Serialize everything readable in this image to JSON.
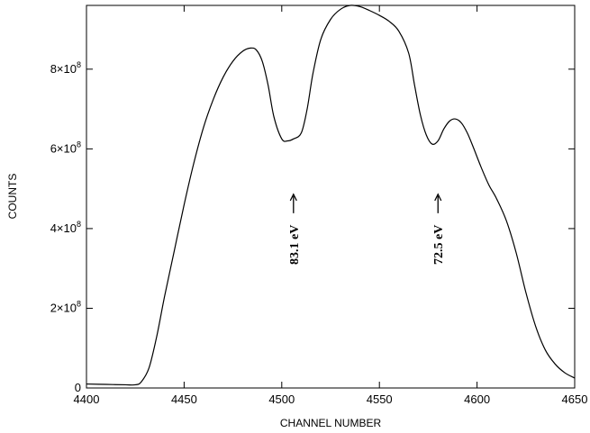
{
  "chart_data": {
    "type": "line",
    "title": "",
    "xlabel": "CHANNEL NUMBER",
    "ylabel": "COUNTS",
    "xlim": [
      4400,
      4650
    ],
    "ylim": [
      0,
      960000000
    ],
    "x_ticks": [
      4400,
      4450,
      4500,
      4550,
      4600,
      4650
    ],
    "x_tick_labels": [
      "4400",
      "4450",
      "4500",
      "4550",
      "4600",
      "4650"
    ],
    "y_ticks": [
      0,
      200000000,
      400000000,
      600000000,
      800000000
    ],
    "y_tick_labels": [
      {
        "base": "0",
        "exp": ""
      },
      {
        "base": "2×10",
        "exp": "8"
      },
      {
        "base": "4×10",
        "exp": "8"
      },
      {
        "base": "6×10",
        "exp": "8"
      },
      {
        "base": "8×10",
        "exp": "8"
      }
    ],
    "grid": false,
    "legend": "none",
    "line_color": "#000000",
    "series": [
      {
        "x": [
          4400,
          4410,
          4420,
          4425,
          4428,
          4432,
          4436,
          4440,
          4445,
          4450,
          4455,
          4460,
          4465,
          4470,
          4475,
          4480,
          4484,
          4487,
          4490,
          4493,
          4496,
          4500,
          4503,
          4506,
          4510,
          4513,
          4516,
          4520,
          4525,
          4530,
          4535,
          4540,
          4545,
          4550,
          4555,
          4560,
          4565,
          4568,
          4571,
          4574,
          4577,
          4580,
          4583,
          4586,
          4589,
          4592,
          4595,
          4598,
          4602,
          4606,
          4610,
          4615,
          4620,
          4625,
          4630,
          4635,
          4640,
          4645,
          4650
        ],
        "y": [
          10000000,
          9000000,
          8000000,
          8000000,
          15000000,
          50000000,
          130000000,
          230000000,
          345000000,
          460000000,
          565000000,
          655000000,
          725000000,
          780000000,
          820000000,
          845000000,
          853000000,
          848000000,
          820000000,
          760000000,
          680000000,
          625000000,
          620000000,
          625000000,
          640000000,
          700000000,
          790000000,
          875000000,
          925000000,
          950000000,
          960000000,
          957000000,
          947000000,
          935000000,
          920000000,
          895000000,
          840000000,
          760000000,
          685000000,
          635000000,
          612000000,
          620000000,
          650000000,
          670000000,
          675000000,
          665000000,
          640000000,
          605000000,
          555000000,
          510000000,
          475000000,
          420000000,
          340000000,
          240000000,
          155000000,
          95000000,
          60000000,
          38000000,
          25000000
        ]
      }
    ],
    "annotations": [
      {
        "text": "83.1 eV",
        "x": 4506,
        "y": 495000000,
        "arrow": "up"
      },
      {
        "text": "72.5 eV",
        "x": 4580,
        "y": 495000000,
        "arrow": "up"
      }
    ]
  }
}
